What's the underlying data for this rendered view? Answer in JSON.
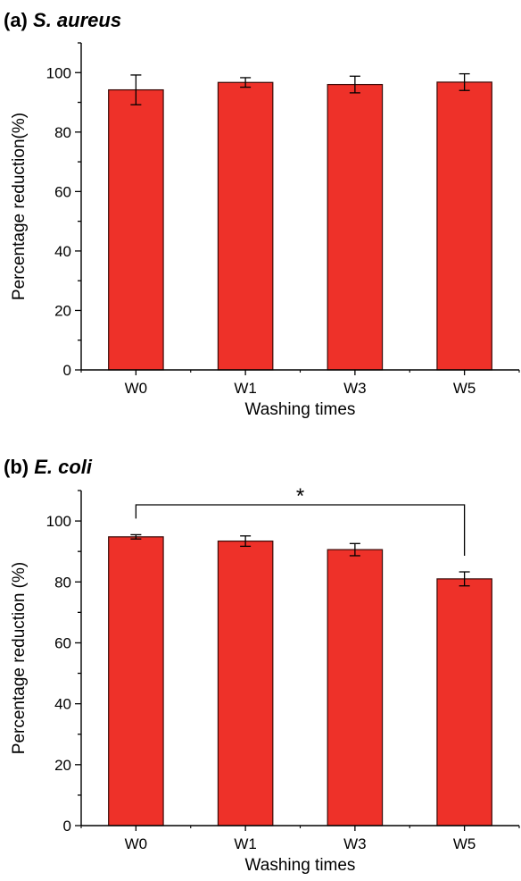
{
  "chart_data": [
    {
      "type": "bar",
      "panel_prefix": "(a)",
      "title": "S. aureus",
      "categories": [
        "W0",
        "W1",
        "W3",
        "W5"
      ],
      "values": [
        94.2,
        96.7,
        96.0,
        96.8
      ],
      "errors": [
        5.0,
        1.6,
        2.8,
        2.8
      ],
      "xlabel": "Washing times",
      "ylabel": "Percentage reduction(%)",
      "ylim": [
        0,
        110
      ],
      "yticks": [
        0,
        20,
        40,
        60,
        80,
        100
      ],
      "bar_color": "#ee3129",
      "significance": null
    },
    {
      "type": "bar",
      "panel_prefix": "(b)",
      "title": "E. coli",
      "categories": [
        "W0",
        "W1",
        "W3",
        "W5"
      ],
      "values": [
        94.8,
        93.4,
        90.6,
        81.0
      ],
      "errors": [
        0.7,
        1.7,
        2.0,
        2.3
      ],
      "xlabel": "Washing times",
      "ylabel": "Percentage reduction (%)",
      "ylim": [
        0,
        110
      ],
      "yticks": [
        0,
        20,
        40,
        60,
        80,
        100
      ],
      "bar_color": "#ee3129",
      "significance": {
        "from": "W0",
        "to": "W5",
        "label": "*"
      }
    }
  ]
}
